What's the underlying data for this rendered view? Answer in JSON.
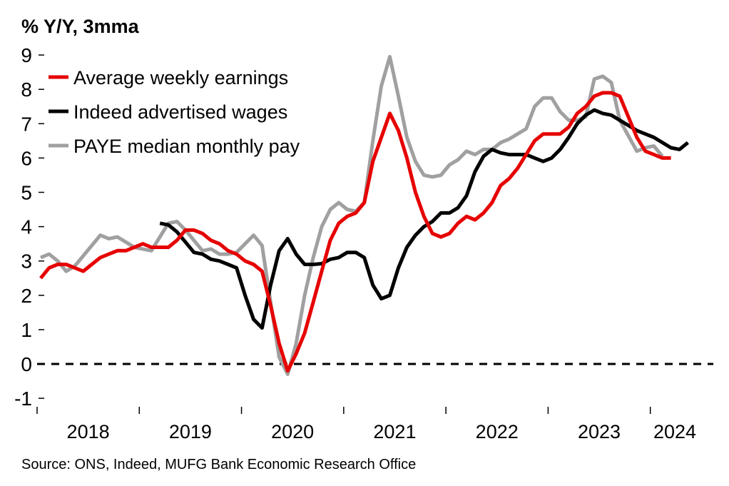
{
  "chart_data": {
    "type": "line",
    "title": "% Y/Y, 3mma",
    "xlabel": "",
    "ylabel": "% Y/Y, 3mma",
    "ylim": [
      -1,
      9
    ],
    "yticks": [
      "-1",
      "0",
      "1",
      "2",
      "3",
      "4",
      "5",
      "6",
      "7",
      "8",
      "9"
    ],
    "xticks": [
      "2018",
      "2019",
      "2020",
      "2021",
      "2022",
      "2023",
      "2024"
    ],
    "x_start": "Jan 2018",
    "x_frequency": "monthly",
    "grid": false,
    "reference_line": {
      "value": 0,
      "style": "dashed"
    },
    "legend_position": "top-left",
    "series": [
      {
        "name": "Average weekly earnings",
        "color": "#e60000",
        "start_index": 0,
        "values": [
          2.5,
          2.8,
          2.9,
          2.9,
          2.8,
          2.7,
          2.9,
          3.1,
          3.2,
          3.3,
          3.3,
          3.4,
          3.5,
          3.4,
          3.4,
          3.4,
          3.6,
          3.9,
          3.9,
          3.8,
          3.6,
          3.5,
          3.3,
          3.2,
          3.0,
          2.9,
          2.7,
          1.7,
          0.6,
          -0.2,
          0.3,
          0.9,
          1.8,
          2.7,
          3.6,
          4.1,
          4.3,
          4.4,
          4.7,
          5.9,
          6.6,
          7.3,
          6.8,
          6.0,
          5.0,
          4.3,
          3.8,
          3.7,
          3.8,
          4.1,
          4.3,
          4.2,
          4.4,
          4.7,
          5.2,
          5.4,
          5.7,
          6.1,
          6.5,
          6.7,
          6.7,
          6.7,
          6.9,
          7.3,
          7.5,
          7.8,
          7.9,
          7.9,
          7.8,
          7.2,
          6.6,
          6.2,
          6.1,
          6.0,
          6.0
        ]
      },
      {
        "name": "Indeed advertised wages",
        "color": "#000000",
        "start_index": 14,
        "values": [
          4.1,
          4.05,
          3.85,
          3.55,
          3.25,
          3.2,
          3.05,
          3.0,
          2.9,
          2.8,
          2.0,
          1.3,
          1.05,
          2.3,
          3.3,
          3.65,
          3.2,
          2.9,
          2.9,
          2.92,
          3.05,
          3.1,
          3.25,
          3.25,
          3.1,
          2.3,
          1.9,
          2.0,
          2.8,
          3.4,
          3.75,
          4.0,
          4.15,
          4.4,
          4.4,
          4.55,
          4.9,
          5.6,
          6.05,
          6.25,
          6.15,
          6.1,
          6.1,
          6.1,
          6.0,
          5.9,
          6.0,
          6.25,
          6.6,
          7.0,
          7.25,
          7.4,
          7.3,
          7.25,
          7.1,
          6.95,
          6.8,
          6.7,
          6.6,
          6.45,
          6.3,
          6.25,
          6.45
        ]
      },
      {
        "name": "PAYE median monthly pay",
        "color": "#a0a0a0",
        "start_index": 0,
        "values": [
          3.1,
          3.2,
          3.0,
          2.7,
          2.85,
          3.15,
          3.45,
          3.75,
          3.65,
          3.7,
          3.55,
          3.4,
          3.35,
          3.3,
          3.7,
          4.1,
          4.15,
          3.9,
          3.6,
          3.3,
          3.35,
          3.2,
          3.2,
          3.25,
          3.5,
          3.75,
          3.45,
          1.8,
          0.2,
          -0.3,
          0.6,
          2.0,
          3.1,
          4.0,
          4.5,
          4.7,
          4.5,
          4.45,
          4.7,
          6.5,
          8.1,
          8.95,
          7.8,
          6.6,
          5.9,
          5.5,
          5.45,
          5.5,
          5.8,
          5.95,
          6.2,
          6.1,
          6.25,
          6.25,
          6.45,
          6.55,
          6.7,
          6.85,
          7.5,
          7.75,
          7.75,
          7.35,
          7.1,
          7.1,
          7.2,
          8.3,
          8.38,
          8.2,
          7.1,
          6.65,
          6.2,
          6.3,
          6.35,
          6.05
        ]
      }
    ],
    "source": "Source: ONS, Indeed, MUFG Bank Economic Research Office"
  }
}
